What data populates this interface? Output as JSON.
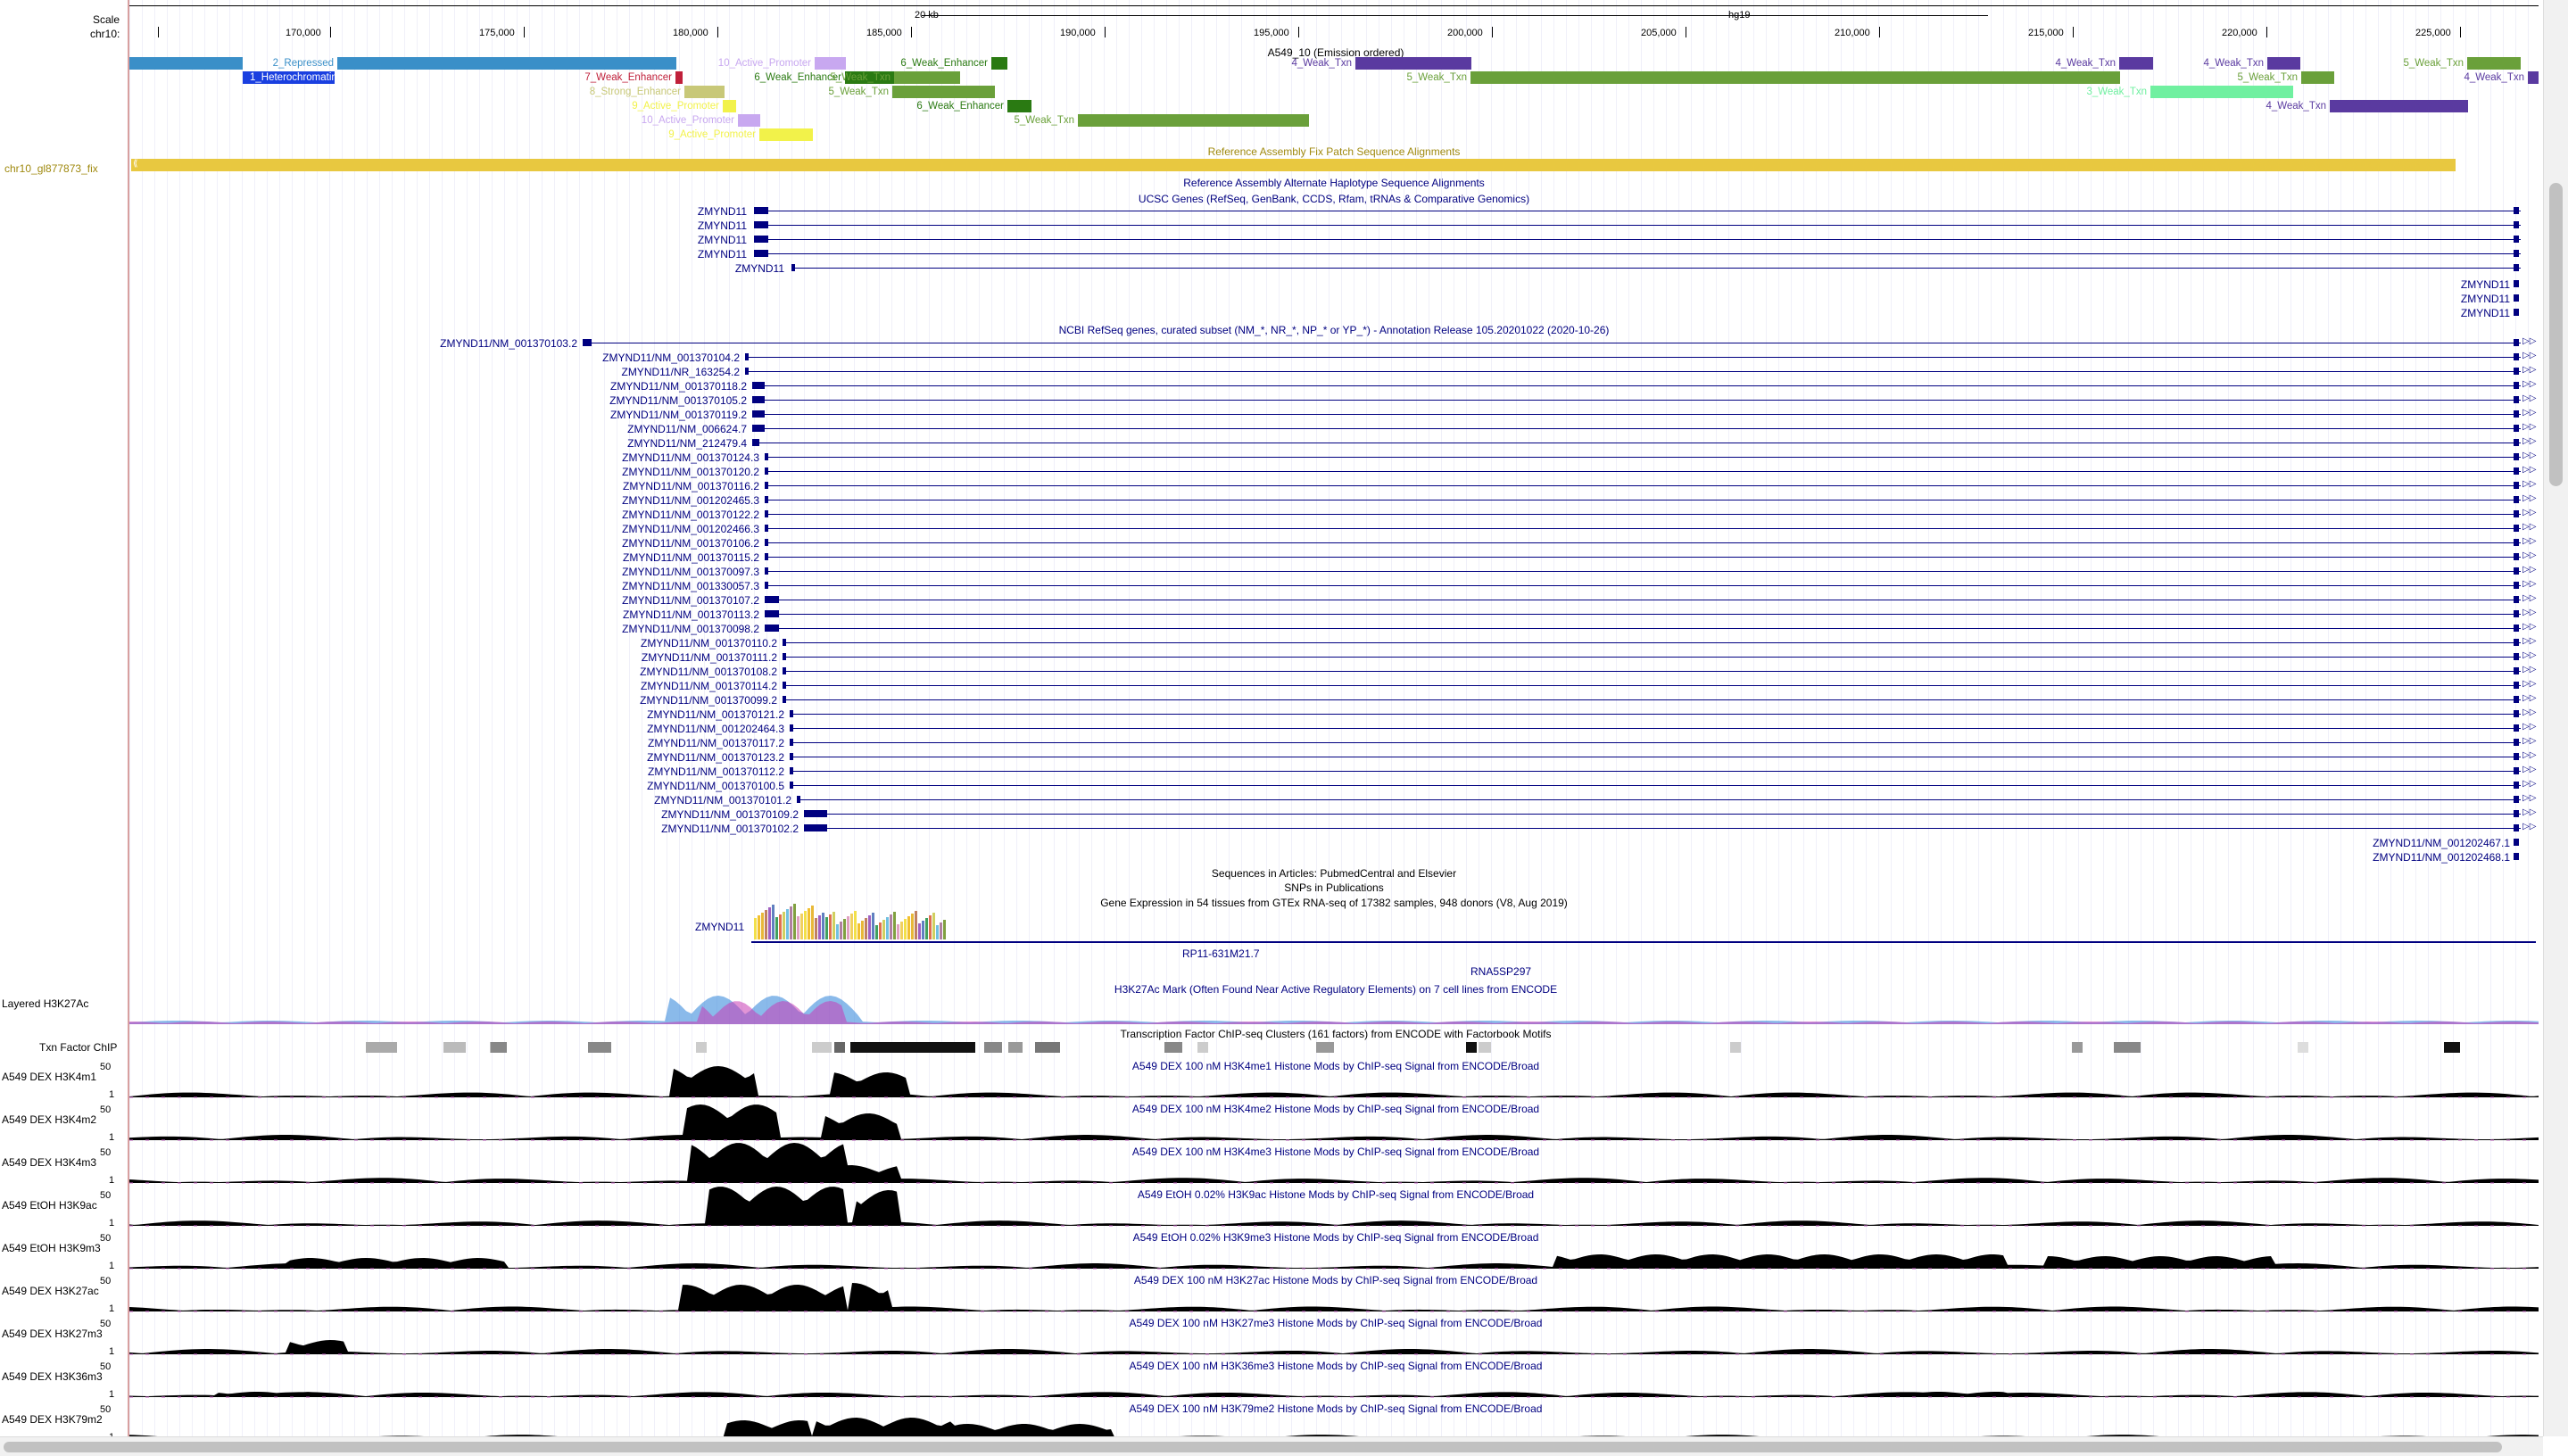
{
  "ruler": {
    "scale_label": "Scale",
    "chrom_label": "chr10:",
    "scale_text": "20 kb",
    "assembly": "hg19",
    "ticks": [
      "170,000",
      "175,000",
      "180,000",
      "185,000",
      "190,000",
      "195,000",
      "200,000",
      "205,000",
      "210,000",
      "215,000",
      "220,000",
      "225,000"
    ]
  },
  "segmentation": {
    "title": "A549_10 (Emission ordered)",
    "labels": [
      "2_Repressed",
      "1_Heterochromatin",
      "2_Repressed",
      "7_Weak_Enhancer",
      "8_Strong_Enhancer",
      "9_Active_Promoter",
      "10_Active_Promoter",
      "10_Active_Promoter",
      "9_Active_Promoter",
      "6_Weak_Enhancer",
      "6_Weak_Enhancer",
      "5_Weak_Txn",
      "5_Weak_Txn",
      "6_Weak_Enhancer",
      "5_Weak_Txn",
      "4_Weak_Txn",
      "5_Weak_Txn",
      "4_Weak_Txn",
      "3_Weak_Txn",
      "4_Weak_Txn",
      "5_Weak_Txn",
      "4_Weak_Txn",
      "5_Weak_Txn",
      "4_Weak_Txn"
    ]
  },
  "fix_patch": {
    "left_label": "chr10_gl877873_fix",
    "title": "Reference Assembly Fix Patch Sequence Alignments"
  },
  "alt_haplo_title": "Reference Assembly Alternate Haplotype Sequence Alignments",
  "ucsc_genes": {
    "title": "UCSC Genes (RefSeq, GenBank, CCDS, Rfam, tRNAs & Comparative Genomics)",
    "left_names": [
      "ZMYND11",
      "ZMYND11",
      "ZMYND11",
      "ZMYND11",
      "ZMYND11"
    ],
    "right_names": [
      "ZMYND11",
      "ZMYND11",
      "ZMYND11"
    ]
  },
  "refseq": {
    "title": "NCBI RefSeq genes, curated subset (NM_*, NR_*, NP_* or YP_*) - Annotation Release 105.20201022 (2020-10-26)",
    "names": [
      "ZMYND11/NM_001370103.2",
      "ZMYND11/NM_001370104.2",
      "ZMYND11/NR_163254.2",
      "ZMYND11/NM_001370118.2",
      "ZMYND11/NM_001370105.2",
      "ZMYND11/NM_001370119.2",
      "ZMYND11/NM_006624.7",
      "ZMYND11/NM_212479.4",
      "ZMYND11/NM_001370124.3",
      "ZMYND11/NM_001370120.2",
      "ZMYND11/NM_001370116.2",
      "ZMYND11/NM_001202465.3",
      "ZMYND11/NM_001370122.2",
      "ZMYND11/NM_001202466.3",
      "ZMYND11/NM_001370106.2",
      "ZMYND11/NM_001370115.2",
      "ZMYND11/NM_001370097.3",
      "ZMYND11/NM_001330057.3",
      "ZMYND11/NM_001370107.2",
      "ZMYND11/NM_001370113.2",
      "ZMYND11/NM_001370098.2",
      "ZMYND11/NM_001370110.2",
      "ZMYND11/NM_001370111.2",
      "ZMYND11/NM_001370108.2",
      "ZMYND11/NM_001370114.2",
      "ZMYND11/NM_001370099.2",
      "ZMYND11/NM_001370121.2",
      "ZMYND11/NM_001202464.3",
      "ZMYND11/NM_001370117.2",
      "ZMYND11/NM_001370123.2",
      "ZMYND11/NM_001370112.2",
      "ZMYND11/NM_001370100.5",
      "ZMYND11/NM_001370101.2",
      "ZMYND11/NM_001370109.2",
      "ZMYND11/NM_001370102.2"
    ],
    "right_names": [
      "ZMYND11/NM_001202467.1",
      "ZMYND11/NM_001202468.1"
    ]
  },
  "pubs_title": "Sequences in Articles: PubmedCentral and Elsevier",
  "snps_pubs_title": "SNPs in Publications",
  "gtex": {
    "title": "Gene Expression in 54 tissues from GTEx RNA-seq of 17382 samples, 948 donors (V8, Aug 2019)",
    "gene": "ZMYND11"
  },
  "extra_labels": [
    "RP11-631M21.7",
    "RNA5SP297"
  ],
  "h3k27ac": {
    "left_label": "Layered H3K27Ac",
    "title": "H3K27Ac Mark (Often Found Near Active Regulatory Elements) on 7 cell lines from ENCODE"
  },
  "txn": {
    "left_label": "Txn Factor ChIP",
    "title": "Transcription Factor ChIP-seq Clusters (161 factors) from ENCODE with Factorbook Motifs"
  },
  "signal_tracks": [
    {
      "left_label": "A549 DEX H3K4m1",
      "title": "A549 DEX 100 nM H3K4me1 Histone Mods by ChIP-seq Signal from ENCODE/Broad",
      "max": "50",
      "min": "1"
    },
    {
      "left_label": "A549 DEX H3K4m2",
      "title": "A549 DEX 100 nM H3K4me2 Histone Mods by ChIP-seq Signal from ENCODE/Broad",
      "max": "50",
      "min": "1"
    },
    {
      "left_label": "A549 DEX H3K4m3",
      "title": "A549 DEX 100 nM H3K4me3 Histone Mods by ChIP-seq Signal from ENCODE/Broad",
      "max": "50",
      "min": "1"
    },
    {
      "left_label": "A549 EtOH H3K9ac",
      "title": "A549 EtOH 0.02% H3K9ac Histone Mods by ChIP-seq Signal from ENCODE/Broad",
      "max": "50",
      "min": "1"
    },
    {
      "left_label": "A549 EtOH H3K9m3",
      "title": "A549 EtOH 0.02% H3K9me3 Histone Mods by ChIP-seq Signal from ENCODE/Broad",
      "max": "50",
      "min": "1"
    },
    {
      "left_label": "A549 DEX H3K27ac",
      "title": "A549 DEX 100 nM H3K27ac Histone Mods by ChIP-seq Signal from ENCODE/Broad",
      "max": "50",
      "min": "1"
    },
    {
      "left_label": "A549 DEX H3K27m3",
      "title": "A549 DEX 100 nM H3K27me3 Histone Mods by ChIP-seq Signal from ENCODE/Broad",
      "max": "50",
      "min": "1"
    },
    {
      "left_label": "A549 DEX H3K36m3",
      "title": "A549 DEX 100 nM H3K36me3 Histone Mods by ChIP-seq Signal from ENCODE/Broad",
      "max": "50",
      "min": "1"
    },
    {
      "left_label": "A549 DEX H3K79m2",
      "title": "A549 DEX 100 nM H3K79me2 Histone Mods by ChIP-seq Signal from ENCODE/Broad",
      "max": "50",
      "min": "1"
    }
  ],
  "colors": {
    "repressed": "#3a8fc8",
    "heterochromatin": "#1a3fe0",
    "weak_txn_green": "#6aa03a",
    "weak_enhancer": "#2a7a12",
    "weak_txn_purple": "#5a3aa0",
    "active_promoter_purple": "#c8a8f0",
    "active_promoter_yellow": "#f2f24a",
    "strong_enhancer": "#c8c878",
    "weak_enhancer_red": "#c0203a",
    "weak_txn_light": "#70f0a0",
    "fix_patch": "#e8c840",
    "gene_navy": "#000080"
  }
}
